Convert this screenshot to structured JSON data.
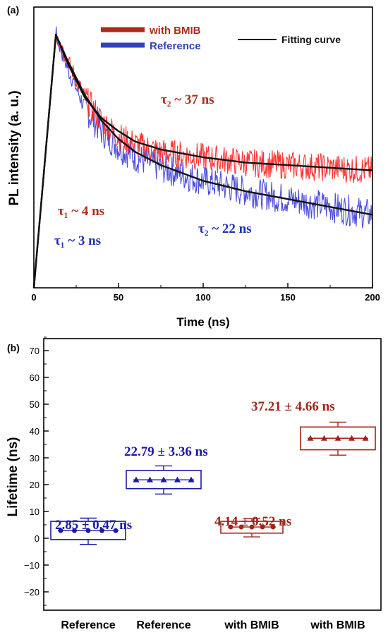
{
  "chart_data": [
    {
      "panel_label": "(a)",
      "type": "line",
      "xlabel": "Time (ns)",
      "ylabel": "PL intensity (a. u.)",
      "xlim": [
        0,
        200
      ],
      "ylim": [
        0,
        1
      ],
      "x_ticks": [
        "0",
        "50",
        "100",
        "150",
        "200"
      ],
      "legend": {
        "placement": "top",
        "entries": [
          {
            "label": "with BMIB",
            "color": "#b02a1a"
          },
          {
            "label": "Reference",
            "color": "#2f44b8"
          },
          {
            "label": "Fitting curve",
            "color": "#111111"
          }
        ]
      },
      "annotations": [
        {
          "text": "τ₂ ~ 37 ns",
          "color": "#b02a1a"
        },
        {
          "text": "τ₁ ~ 4 ns",
          "color": "#b02a1a"
        },
        {
          "text": "τ₁ ~ 3 ns",
          "color": "#1f2fb0"
        },
        {
          "text": "τ₂ ~ 22 ns",
          "color": "#1f2fb0"
        }
      ],
      "series": [
        {
          "name": "with BMIB",
          "color": "#ff1f1f",
          "noise_amplitude": 0.055,
          "x": [
            0,
            13,
            20,
            30,
            40,
            50,
            60,
            75,
            100,
            125,
            150,
            175,
            200
          ],
          "y": [
            0.0,
            0.97,
            0.87,
            0.73,
            0.64,
            0.58,
            0.55,
            0.52,
            0.5,
            0.48,
            0.47,
            0.46,
            0.45
          ]
        },
        {
          "name": "Reference",
          "color": "#3a3ad8",
          "noise_amplitude": 0.06,
          "x": [
            0,
            13,
            20,
            30,
            40,
            50,
            60,
            75,
            100,
            125,
            150,
            175,
            200
          ],
          "y": [
            0.0,
            0.97,
            0.84,
            0.69,
            0.6,
            0.54,
            0.5,
            0.46,
            0.41,
            0.37,
            0.34,
            0.31,
            0.28
          ]
        }
      ],
      "fits": [
        {
          "of": "with BMIB",
          "color": "#111111",
          "x": [
            0,
            13,
            20,
            30,
            40,
            50,
            60,
            75,
            100,
            125,
            150,
            175,
            200
          ],
          "y": [
            0.0,
            0.97,
            0.86,
            0.73,
            0.65,
            0.6,
            0.56,
            0.53,
            0.5,
            0.48,
            0.47,
            0.46,
            0.45
          ]
        },
        {
          "of": "Reference",
          "color": "#111111",
          "x": [
            0,
            13,
            20,
            30,
            40,
            50,
            60,
            75,
            100,
            125,
            150,
            175,
            200
          ],
          "y": [
            0.0,
            0.97,
            0.87,
            0.74,
            0.64,
            0.57,
            0.52,
            0.47,
            0.41,
            0.37,
            0.34,
            0.31,
            0.28
          ]
        }
      ]
    },
    {
      "panel_label": "(b)",
      "type": "box",
      "ylabel": "Lifetime (ns)",
      "ylim": [
        -25,
        75
      ],
      "y_ticks": [
        -20,
        -10,
        0,
        10,
        20,
        30,
        40,
        50,
        60,
        70
      ],
      "categories": [
        "Reference",
        "Reference",
        "with BMIB",
        "with BMIB"
      ],
      "boxes": [
        {
          "category": "Reference",
          "color": "#1a1aa8",
          "marker": "circle",
          "mean": 2.85,
          "sd": 0.47,
          "label": "2.85 ± 0.47 ns",
          "box": [
            -0.5,
            6.3
          ],
          "whiskers": [
            -2.3,
            7.5
          ],
          "points": [
            2.85,
            2.85,
            2.85,
            2.85,
            2.85
          ]
        },
        {
          "category": "Reference",
          "color": "#1a1aa8",
          "marker": "triangle",
          "mean": 22.79,
          "sd": 3.36,
          "label": "22.79 ± 3.36 ns",
          "box": [
            18.5,
            25.3
          ],
          "whiskers": [
            16.5,
            27.0
          ],
          "points": [
            21.8,
            21.8,
            21.8,
            21.8,
            21.8
          ]
        },
        {
          "category": "with BMIB",
          "color": "#a0231a",
          "marker": "circle",
          "mean": 4.14,
          "sd": 0.52,
          "label": "4.14 ± 0.52 ns",
          "box": [
            1.9,
            6.3
          ],
          "whiskers": [
            0.5,
            7.3
          ],
          "points": [
            4.2,
            4.2,
            4.2,
            4.2,
            4.2
          ]
        },
        {
          "category": "with BMIB",
          "color": "#a0231a",
          "marker": "triangle",
          "mean": 37.21,
          "sd": 4.66,
          "label": "37.21 ± 4.66 ns",
          "box": [
            33.0,
            41.5
          ],
          "whiskers": [
            31.0,
            43.3
          ],
          "points": [
            37.3,
            37.3,
            37.3,
            37.3,
            37.3
          ]
        }
      ]
    }
  ]
}
